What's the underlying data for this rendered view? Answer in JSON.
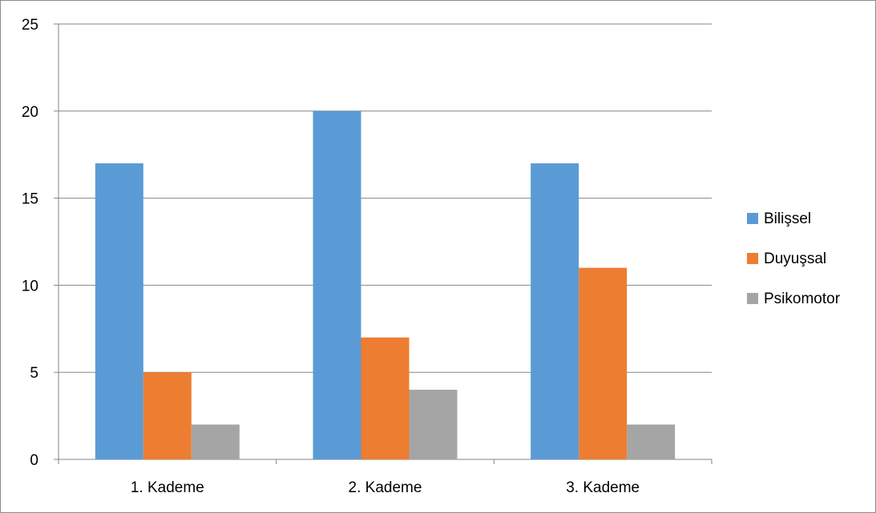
{
  "chart_data": {
    "type": "bar",
    "categories": [
      "1. Kademe",
      "2. Kademe",
      "3. Kademe"
    ],
    "series": [
      {
        "name": "Bilişsel",
        "values": [
          17,
          20,
          17
        ],
        "color": "#5B9BD5"
      },
      {
        "name": "Duyuşsal",
        "values": [
          5,
          7,
          11
        ],
        "color": "#ED7D31"
      },
      {
        "name": "Psikomotor",
        "values": [
          2,
          4,
          2
        ],
        "color": "#A5A5A5"
      }
    ],
    "ylim": [
      0,
      25
    ],
    "yticks": [
      0,
      5,
      10,
      15,
      20,
      25
    ],
    "grid": true,
    "legend": "right",
    "title": "",
    "xlabel": "",
    "ylabel": ""
  }
}
